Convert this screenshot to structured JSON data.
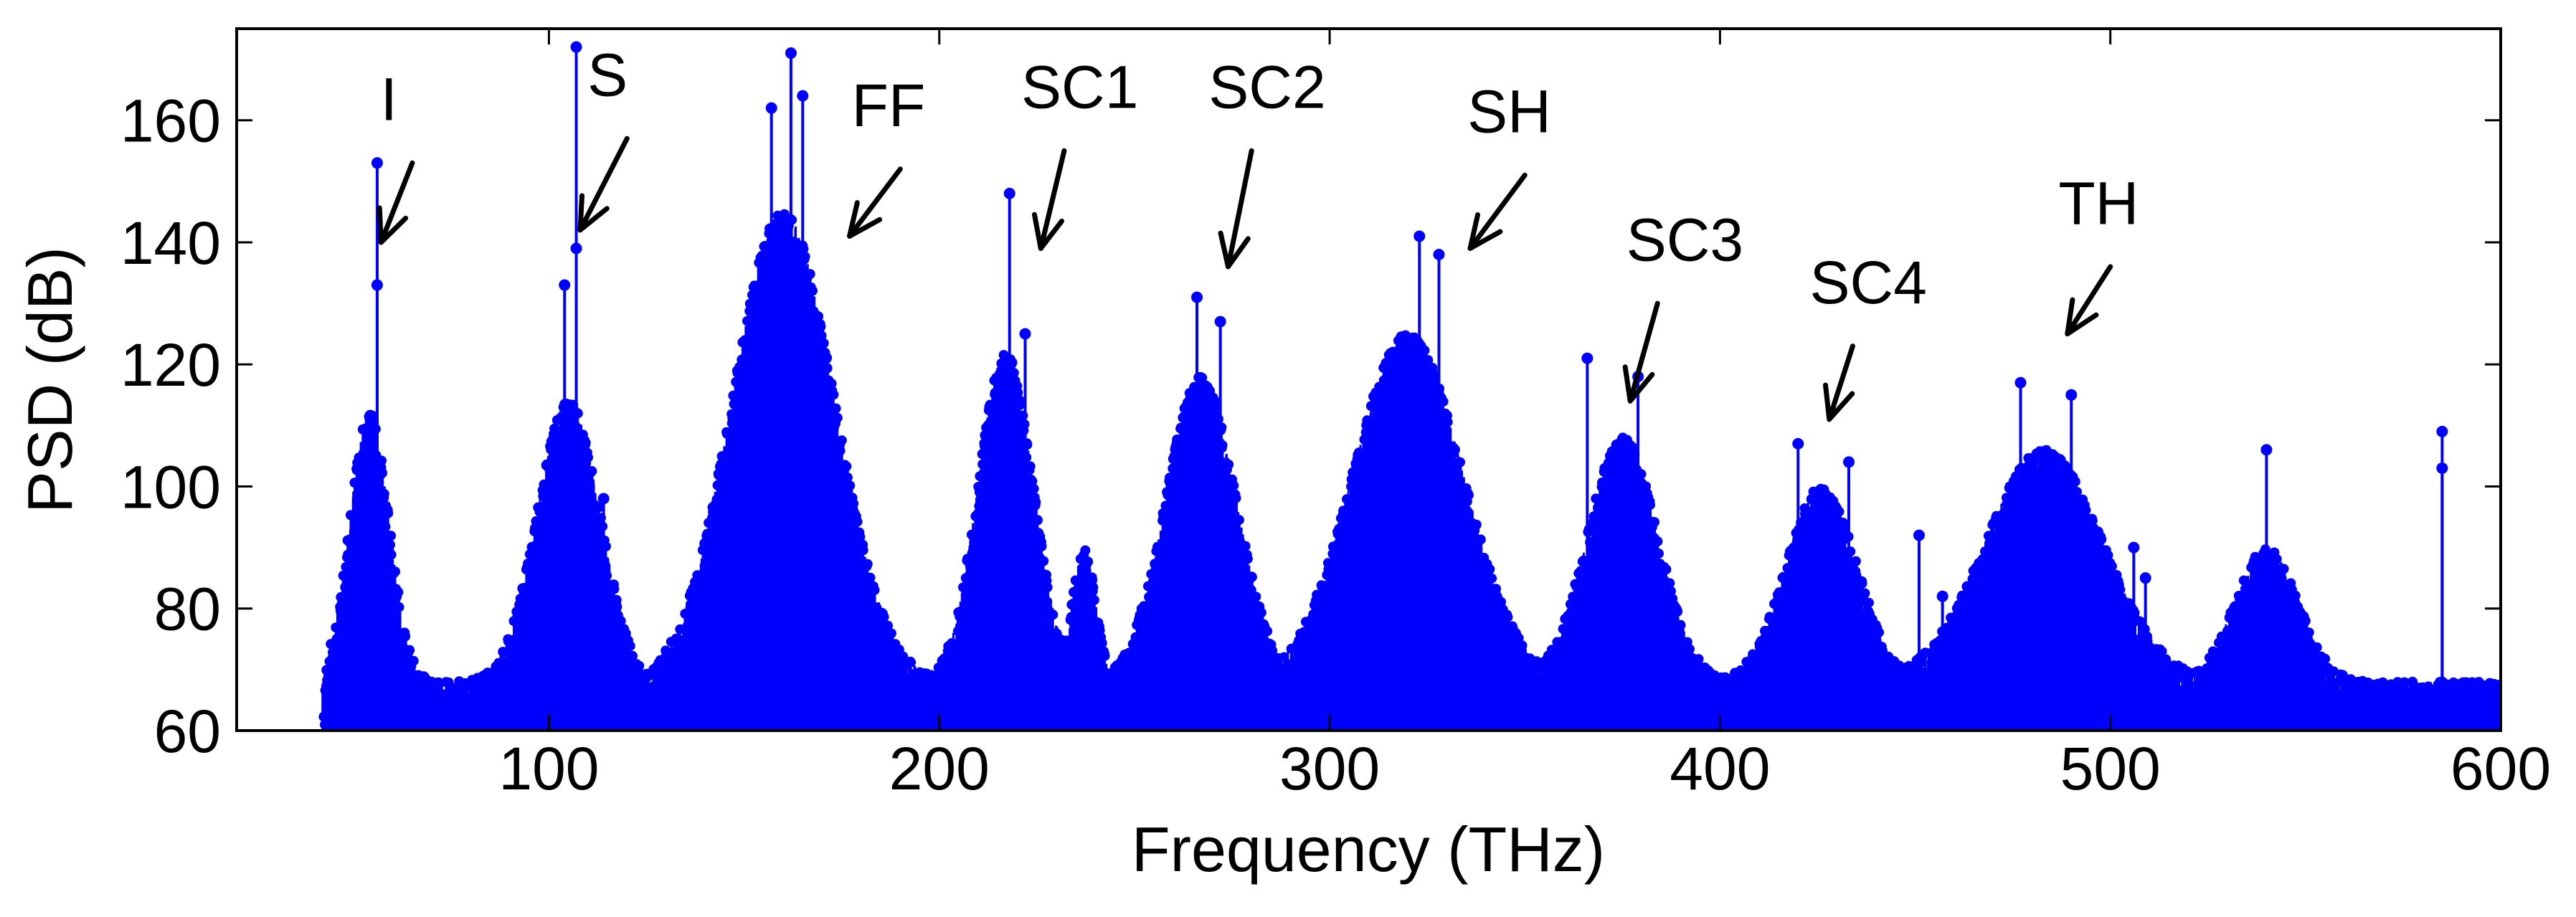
{
  "chart_data": {
    "type": "line",
    "style": "stem",
    "title": "",
    "xlabel": "Frequency (THz)",
    "ylabel": "PSD (dB)",
    "xlim": [
      20,
      600
    ],
    "ylim": [
      60,
      175
    ],
    "xticks": [
      100,
      200,
      300,
      400,
      500,
      600
    ],
    "yticks": [
      60,
      80,
      100,
      120,
      140,
      160
    ],
    "grid": false,
    "series_color": "#0000ff",
    "baseline_db": 60,
    "noise_floor_db": 68,
    "x_range_data": [
      42,
      600
    ],
    "bands": [
      {
        "name": "I",
        "center": 54,
        "width": 5,
        "peak": 112
      },
      {
        "name": "S",
        "center": 105,
        "width": 8,
        "peak": 114
      },
      {
        "name": "FF",
        "center": 160,
        "width": 13,
        "peak": 145
      },
      {
        "name": "SC1",
        "center": 217,
        "width": 7,
        "peak": 122
      },
      {
        "name": "",
        "center": 237,
        "width": 3,
        "peak": 90
      },
      {
        "name": "SC2",
        "center": 267,
        "width": 9,
        "peak": 118
      },
      {
        "name": "SH",
        "center": 320,
        "width": 14,
        "peak": 125
      },
      {
        "name": "SC3",
        "center": 375,
        "width": 9,
        "peak": 108
      },
      {
        "name": "SC4",
        "center": 426,
        "width": 9,
        "peak": 100
      },
      {
        "name": "TH",
        "center": 483,
        "width": 15,
        "peak": 106
      },
      {
        "name": "",
        "center": 540,
        "width": 8,
        "peak": 90
      }
    ],
    "spikes": [
      {
        "x": 56,
        "y": 153
      },
      {
        "x": 56,
        "y": 133
      },
      {
        "x": 107,
        "y": 172
      },
      {
        "x": 107,
        "y": 139
      },
      {
        "x": 104,
        "y": 133
      },
      {
        "x": 114,
        "y": 98
      },
      {
        "x": 162,
        "y": 171
      },
      {
        "x": 157,
        "y": 162
      },
      {
        "x": 165,
        "y": 164
      },
      {
        "x": 218,
        "y": 148
      },
      {
        "x": 222,
        "y": 125
      },
      {
        "x": 266,
        "y": 131
      },
      {
        "x": 272,
        "y": 127
      },
      {
        "x": 323,
        "y": 141
      },
      {
        "x": 328,
        "y": 138
      },
      {
        "x": 366,
        "y": 121
      },
      {
        "x": 379,
        "y": 118
      },
      {
        "x": 420,
        "y": 107
      },
      {
        "x": 433,
        "y": 104
      },
      {
        "x": 451,
        "y": 92
      },
      {
        "x": 457,
        "y": 82
      },
      {
        "x": 477,
        "y": 117
      },
      {
        "x": 490,
        "y": 115
      },
      {
        "x": 506,
        "y": 90
      },
      {
        "x": 509,
        "y": 85
      },
      {
        "x": 540,
        "y": 106
      },
      {
        "x": 585,
        "y": 109
      },
      {
        "x": 585,
        "y": 103
      }
    ],
    "annotations": [
      {
        "text": "I",
        "x": 59,
        "y": 160,
        "arrow_from": [
          65,
          153
        ],
        "arrow_to": [
          57,
          140
        ]
      },
      {
        "text": "S",
        "x": 115,
        "y": 164,
        "arrow_from": [
          120,
          157
        ],
        "arrow_to": [
          108,
          142
        ]
      },
      {
        "text": "FF",
        "x": 187,
        "y": 159,
        "arrow_from": [
          190,
          152
        ],
        "arrow_to": [
          177,
          141
        ]
      },
      {
        "text": "SC1",
        "x": 236,
        "y": 162,
        "arrow_from": [
          232,
          155
        ],
        "arrow_to": [
          226,
          139
        ]
      },
      {
        "text": "SC2",
        "x": 284,
        "y": 162,
        "arrow_from": [
          280,
          155
        ],
        "arrow_to": [
          274,
          136
        ]
      },
      {
        "text": "SH",
        "x": 346,
        "y": 158,
        "arrow_from": [
          350,
          151
        ],
        "arrow_to": [
          336,
          139
        ]
      },
      {
        "text": "SC3",
        "x": 391,
        "y": 137,
        "arrow_from": [
          384,
          130
        ],
        "arrow_to": [
          377,
          114
        ]
      },
      {
        "text": "SC4",
        "x": 438,
        "y": 130,
        "arrow_from": [
          434,
          123
        ],
        "arrow_to": [
          428,
          111
        ]
      },
      {
        "text": "TH",
        "x": 497,
        "y": 143,
        "arrow_from": [
          500,
          136
        ],
        "arrow_to": [
          489,
          125
        ]
      }
    ]
  }
}
